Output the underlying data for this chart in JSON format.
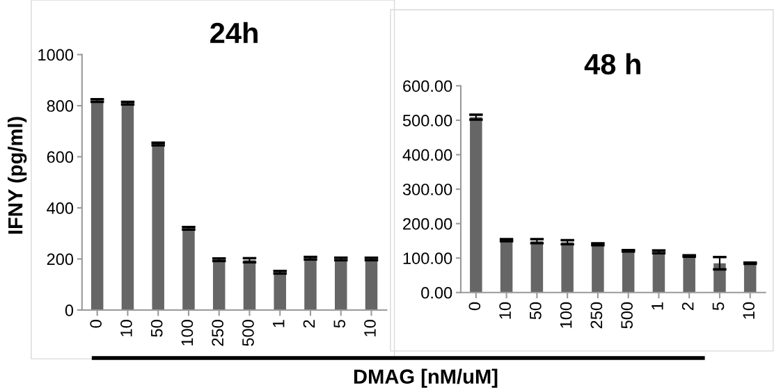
{
  "chart_data": [
    {
      "type": "bar",
      "title": "24h",
      "ylabel": "IFNY (pg/ml)",
      "xlabel": "DMAG [nM/uM]",
      "categories": [
        "0",
        "10",
        "50",
        "100",
        "250",
        "500",
        "1",
        "2",
        "5",
        "10"
      ],
      "values": [
        820,
        810,
        650,
        320,
        197,
        195,
        148,
        203,
        200,
        200
      ],
      "errors": [
        5,
        5,
        5,
        5,
        5,
        8,
        5,
        5,
        5,
        5
      ],
      "color": "#666666",
      "ylim": [
        0,
        1000
      ],
      "yticks": [
        0,
        200,
        400,
        600,
        800,
        1000
      ],
      "grid": false
    },
    {
      "type": "bar",
      "title": "48 h",
      "categories": [
        "0",
        "10",
        "50",
        "100",
        "250",
        "500",
        "1",
        "2",
        "5",
        "10"
      ],
      "values": [
        509,
        152,
        149,
        146,
        140,
        121,
        118,
        106,
        85,
        85
      ],
      "errors": [
        7,
        3,
        6,
        6,
        3,
        2,
        4,
        2,
        18,
        2
      ],
      "color": "#666666",
      "ylim": [
        0,
        600
      ],
      "yticks": [
        {
          "value": 0,
          "label": "0.00"
        },
        {
          "value": 100,
          "label": "100.00"
        },
        {
          "value": 200,
          "label": "200.00"
        },
        {
          "value": 300,
          "label": "300.00"
        },
        {
          "value": 400,
          "label": "400.00"
        },
        {
          "value": 500,
          "label": "500.00"
        },
        {
          "value": 600,
          "label": "600.00"
        }
      ],
      "grid": false
    }
  ]
}
